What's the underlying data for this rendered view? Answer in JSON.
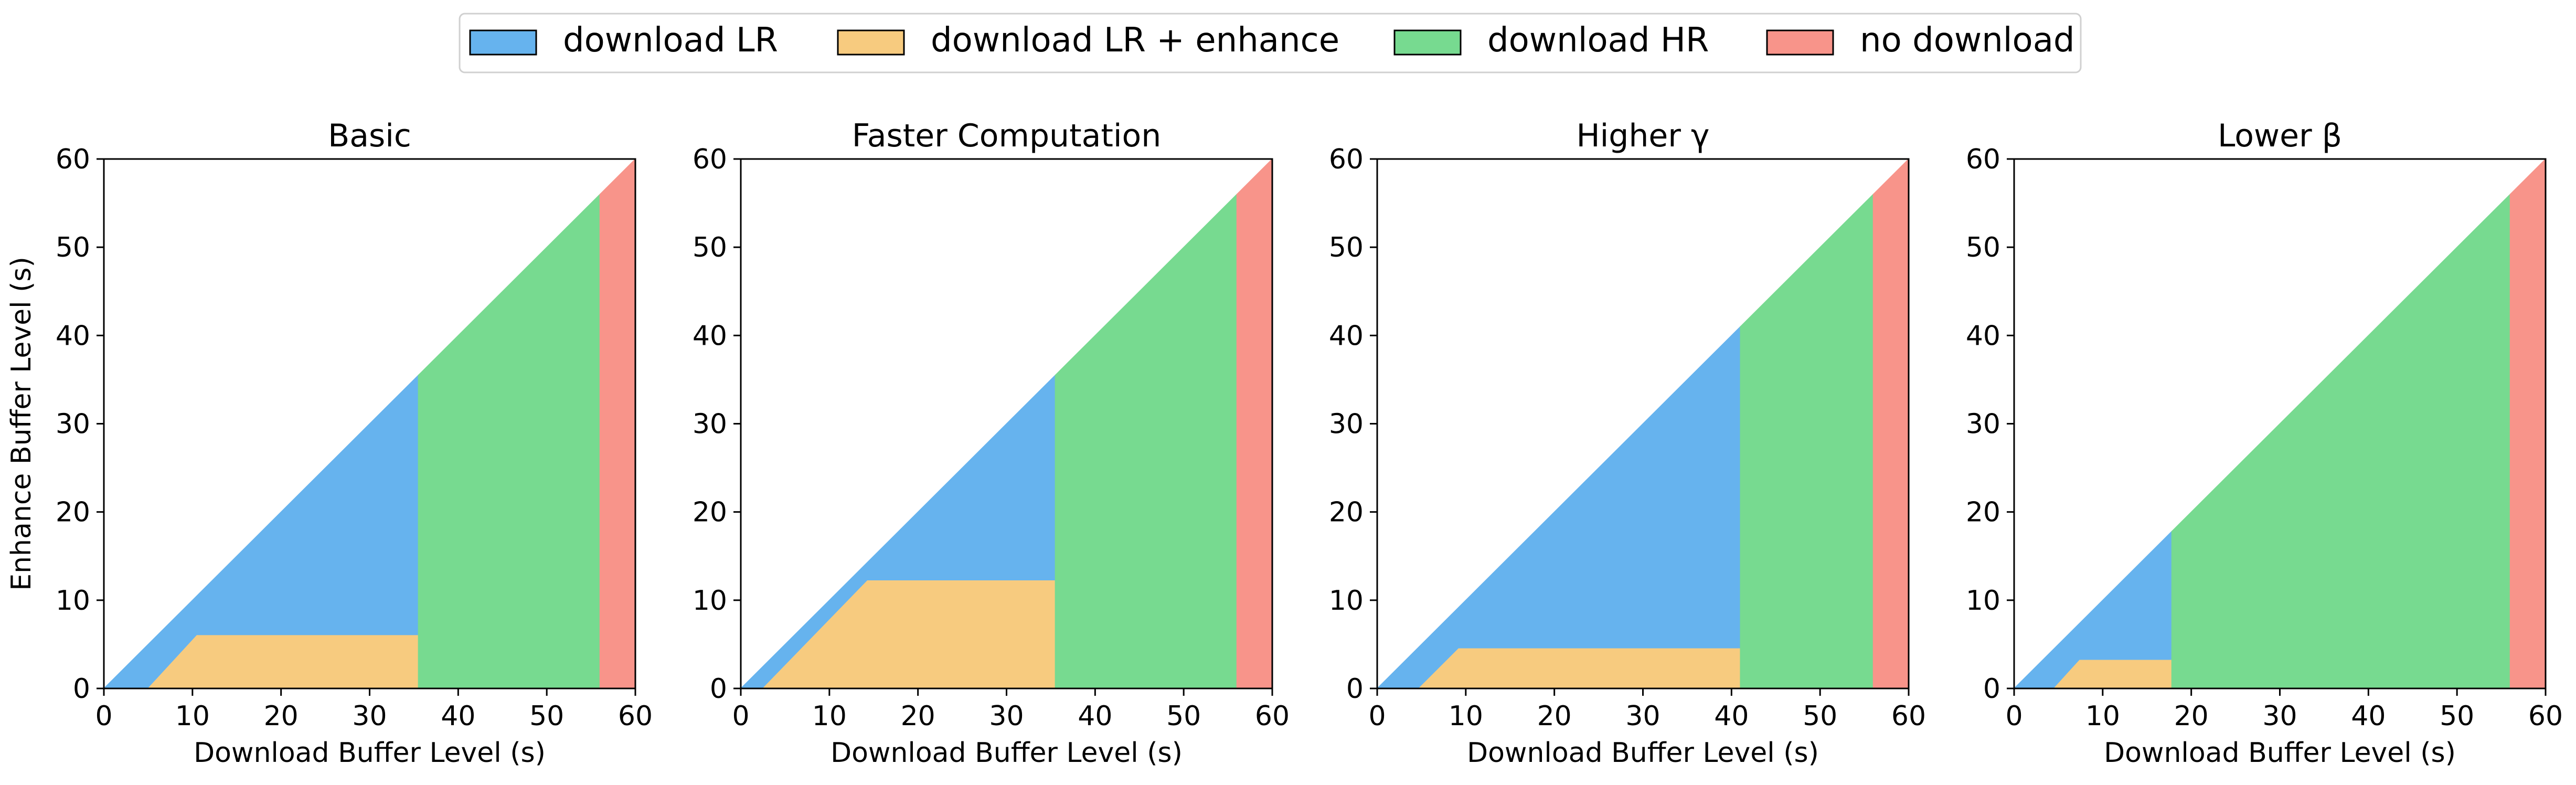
{
  "legend": {
    "position": "top-center",
    "items": [
      {
        "label": "download LR",
        "color": "#66b3ee"
      },
      {
        "label": "download LR + enhance",
        "color": "#f7cb7f"
      },
      {
        "label": "download HR",
        "color": "#77da90"
      },
      {
        "label": "no download",
        "color": "#f8948a"
      }
    ]
  },
  "chart_data": [
    {
      "type": "area",
      "title": "Basic",
      "xlabel": "Download Buffer Level (s)",
      "ylabel": "Enhance Buffer Level (s)",
      "xlim": [
        0,
        60
      ],
      "ylim": [
        0,
        60
      ],
      "xticks": [
        0,
        10,
        20,
        30,
        40,
        50,
        60
      ],
      "yticks": [
        0,
        10,
        20,
        30,
        40,
        50,
        60
      ],
      "regions": [
        {
          "label": "download LR",
          "color": "#66b3ee",
          "points": [
            [
              0,
              0
            ],
            [
              35.5,
              35.5
            ],
            [
              35.5,
              6
            ],
            [
              10.5,
              6
            ],
            [
              5,
              0
            ]
          ]
        },
        {
          "label": "download LR + enhance",
          "color": "#f7cb7f",
          "points": [
            [
              5,
              0
            ],
            [
              10.5,
              6
            ],
            [
              35.5,
              6
            ],
            [
              43,
              0
            ]
          ]
        },
        {
          "label": "download HR",
          "color": "#77da90",
          "points": [
            [
              35.5,
              0
            ],
            [
              35.5,
              35.5
            ],
            [
              56,
              56
            ],
            [
              56,
              0
            ]
          ]
        },
        {
          "label": "no download",
          "color": "#f8948a",
          "points": [
            [
              56,
              0
            ],
            [
              56,
              56
            ],
            [
              60,
              60
            ],
            [
              60,
              0
            ]
          ]
        }
      ]
    },
    {
      "type": "area",
      "title": "Faster Computation",
      "xlabel": "Download Buffer Level (s)",
      "ylabel": "",
      "xlim": [
        0,
        60
      ],
      "ylim": [
        0,
        60
      ],
      "xticks": [
        0,
        10,
        20,
        30,
        40,
        50,
        60
      ],
      "yticks": [
        0,
        10,
        20,
        30,
        40,
        50,
        60
      ],
      "regions": [
        {
          "label": "download LR",
          "color": "#66b3ee",
          "points": [
            [
              0,
              0
            ],
            [
              35.5,
              35.5
            ],
            [
              35.5,
              12.2
            ],
            [
              14.3,
              12.2
            ],
            [
              2.5,
              0
            ]
          ]
        },
        {
          "label": "download LR + enhance",
          "color": "#f7cb7f",
          "points": [
            [
              2.5,
              0
            ],
            [
              14.3,
              12.2
            ],
            [
              35.5,
              12.2
            ],
            [
              43,
              0
            ]
          ]
        },
        {
          "label": "download HR",
          "color": "#77da90",
          "points": [
            [
              35.5,
              0
            ],
            [
              35.5,
              35.5
            ],
            [
              56,
              56
            ],
            [
              56,
              0
            ]
          ]
        },
        {
          "label": "no download",
          "color": "#f8948a",
          "points": [
            [
              56,
              0
            ],
            [
              56,
              56
            ],
            [
              60,
              60
            ],
            [
              60,
              0
            ]
          ]
        }
      ]
    },
    {
      "type": "area",
      "title": "Higher γ",
      "xlabel": "Download Buffer Level (s)",
      "ylabel": "",
      "xlim": [
        0,
        60
      ],
      "ylim": [
        0,
        60
      ],
      "xticks": [
        0,
        10,
        20,
        30,
        40,
        50,
        60
      ],
      "yticks": [
        0,
        10,
        20,
        30,
        40,
        50,
        60
      ],
      "regions": [
        {
          "label": "download LR",
          "color": "#66b3ee",
          "points": [
            [
              0,
              0
            ],
            [
              41,
              41
            ],
            [
              41,
              4.5
            ],
            [
              9.2,
              4.5
            ],
            [
              4.7,
              0
            ]
          ]
        },
        {
          "label": "download LR + enhance",
          "color": "#f7cb7f",
          "points": [
            [
              4.7,
              0
            ],
            [
              9.2,
              4.5
            ],
            [
              41,
              4.5
            ],
            [
              46,
              0
            ]
          ]
        },
        {
          "label": "download HR",
          "color": "#77da90",
          "points": [
            [
              41,
              0
            ],
            [
              41,
              41
            ],
            [
              56,
              56
            ],
            [
              56,
              0
            ]
          ]
        },
        {
          "label": "no download",
          "color": "#f8948a",
          "points": [
            [
              56,
              0
            ],
            [
              56,
              56
            ],
            [
              60,
              60
            ],
            [
              60,
              0
            ]
          ]
        }
      ]
    },
    {
      "type": "area",
      "title": "Lower β",
      "xlabel": "Download Buffer Level (s)",
      "ylabel": "",
      "xlim": [
        0,
        60
      ],
      "ylim": [
        0,
        60
      ],
      "xticks": [
        0,
        10,
        20,
        30,
        40,
        50,
        60
      ],
      "yticks": [
        0,
        10,
        20,
        30,
        40,
        50,
        60
      ],
      "regions": [
        {
          "label": "download LR",
          "color": "#66b3ee",
          "points": [
            [
              0,
              0
            ],
            [
              17.8,
              17.8
            ],
            [
              17.8,
              3.2
            ],
            [
              7.4,
              3.2
            ],
            [
              4.5,
              0
            ]
          ]
        },
        {
          "label": "download LR + enhance",
          "color": "#f7cb7f",
          "points": [
            [
              4.5,
              0
            ],
            [
              7.4,
              3.2
            ],
            [
              17.8,
              3.2
            ],
            [
              21,
              0
            ]
          ]
        },
        {
          "label": "download HR",
          "color": "#77da90",
          "points": [
            [
              17.8,
              0
            ],
            [
              17.8,
              17.8
            ],
            [
              56,
              56
            ],
            [
              56,
              0
            ]
          ]
        },
        {
          "label": "no download",
          "color": "#f8948a",
          "points": [
            [
              56,
              0
            ],
            [
              56,
              56
            ],
            [
              60,
              60
            ],
            [
              60,
              0
            ]
          ]
        }
      ]
    }
  ]
}
